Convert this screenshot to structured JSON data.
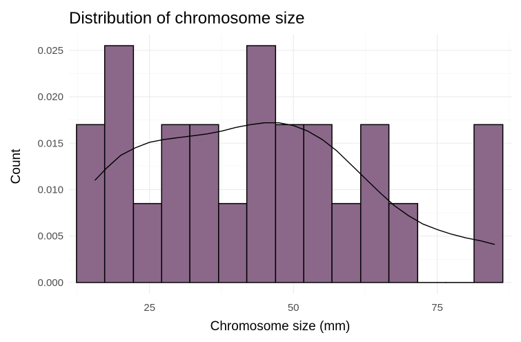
{
  "chart_data": {
    "type": "bar",
    "title": "Distribution of chromosome size",
    "xlabel": "Chromosome size (mm)",
    "ylabel": "Count",
    "xlim": [
      11,
      88
    ],
    "ylim": [
      -0.0012,
      0.0267
    ],
    "x_ticks": [
      25,
      50,
      75
    ],
    "x_tick_labels": [
      "25",
      "50",
      "75"
    ],
    "y_ticks": [
      0.0,
      0.005,
      0.01,
      0.015,
      0.02,
      0.025
    ],
    "y_tick_labels": [
      "0.000",
      "0.005",
      "0.010",
      "0.015",
      "0.020",
      "0.025"
    ],
    "grid": true,
    "bar_color": "#8b6889",
    "bins": [
      {
        "start": 12.3,
        "end": 17.2,
        "value": 0.017
      },
      {
        "start": 17.2,
        "end": 22.2,
        "value": 0.0255
      },
      {
        "start": 22.2,
        "end": 27.1,
        "value": 0.0085
      },
      {
        "start": 27.1,
        "end": 32.0,
        "value": 0.017
      },
      {
        "start": 32.0,
        "end": 37.0,
        "value": 0.017
      },
      {
        "start": 37.0,
        "end": 41.9,
        "value": 0.0085
      },
      {
        "start": 41.9,
        "end": 46.9,
        "value": 0.0255
      },
      {
        "start": 46.9,
        "end": 51.8,
        "value": 0.017
      },
      {
        "start": 51.8,
        "end": 56.7,
        "value": 0.017
      },
      {
        "start": 56.7,
        "end": 61.7,
        "value": 0.0085
      },
      {
        "start": 61.7,
        "end": 66.6,
        "value": 0.017
      },
      {
        "start": 66.6,
        "end": 71.6,
        "value": 0.0085
      },
      {
        "start": 71.6,
        "end": 76.5,
        "value": 0
      },
      {
        "start": 76.5,
        "end": 81.4,
        "value": 0
      },
      {
        "start": 81.4,
        "end": 86.4,
        "value": 0.017
      }
    ],
    "density": {
      "x": [
        15.5,
        17.5,
        20,
        22.5,
        25,
        27.5,
        30,
        32.5,
        35,
        37.5,
        40,
        42.5,
        45,
        47.5,
        50,
        52.5,
        55,
        57.5,
        60,
        62.5,
        65,
        67.5,
        70,
        72.5,
        75,
        77.5,
        80,
        82.5,
        85
      ],
      "y": [
        0.011,
        0.0123,
        0.0137,
        0.0145,
        0.0151,
        0.0154,
        0.0156,
        0.0158,
        0.016,
        0.0163,
        0.0167,
        0.017,
        0.0172,
        0.0172,
        0.0169,
        0.0163,
        0.0154,
        0.0142,
        0.0127,
        0.0112,
        0.0097,
        0.0083,
        0.0072,
        0.0063,
        0.0057,
        0.0052,
        0.0048,
        0.0045,
        0.0041
      ]
    }
  }
}
